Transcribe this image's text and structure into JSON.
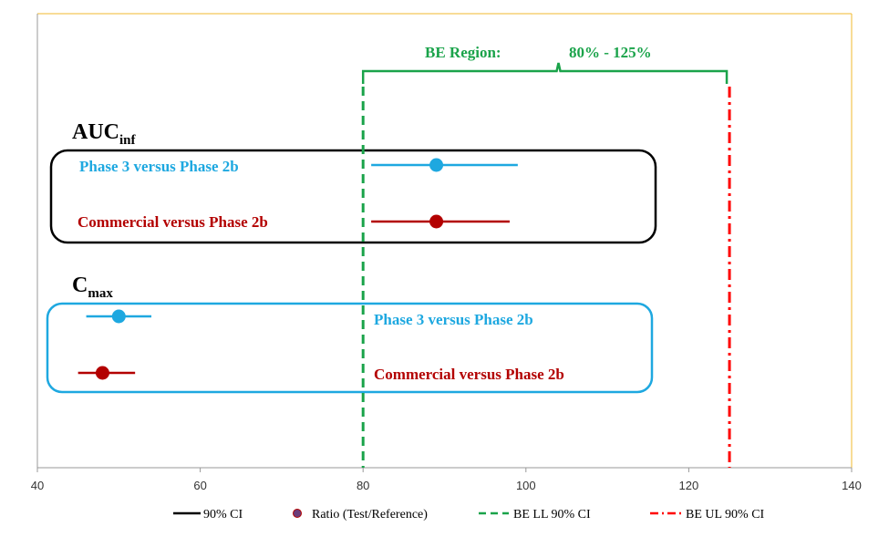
{
  "chart_data": {
    "type": "scatter",
    "x_axis": {
      "min": 40,
      "max": 140,
      "ticks": [
        "40",
        "60",
        "80",
        "100",
        "120",
        "140"
      ]
    },
    "be_region": {
      "label": "BE Region:",
      "range_label": "80% - 125%",
      "lower": 80,
      "upper": 125,
      "brace_mid": 104
    },
    "groups": [
      {
        "title_main": "AUC",
        "title_sub": "inf",
        "rows": [
          {
            "label": "Phase 3 versus Phase 2b",
            "color": "#1ea8e0",
            "ratio": 89,
            "ci_low": 81,
            "ci_high": 99
          },
          {
            "label": "Commercial versus Phase 2b",
            "color": "#b30000",
            "ratio": 89,
            "ci_low": 81,
            "ci_high": 98
          }
        ]
      },
      {
        "title_main": "C",
        "title_sub": "max",
        "rows": [
          {
            "label": "Phase 3 versus Phase 2b",
            "color": "#1ea8e0",
            "ratio": 50,
            "ci_low": 46,
            "ci_high": 54
          },
          {
            "label": "Commercial versus Phase 2b",
            "color": "#b30000",
            "ratio": 48,
            "ci_low": 45,
            "ci_high": 52
          }
        ]
      }
    ],
    "legend": [
      {
        "label": "90% CI",
        "kind": "solid",
        "color": "#000000"
      },
      {
        "label": "Ratio (Test/Reference)",
        "kind": "marker",
        "color": "#6a3d7a"
      },
      {
        "label": "BE LL 90% CI",
        "kind": "dash",
        "color": "#1aa34a"
      },
      {
        "label": "BE UL 90% CI",
        "kind": "dashdot",
        "color": "#ff0000"
      }
    ],
    "legend_position": "bottom",
    "grid": false,
    "colors": {
      "be_green": "#1aa34a",
      "be_red": "#ff0000",
      "frame": "#f2b92c",
      "group1_box": "#000000",
      "group2_box": "#1ea8e0"
    }
  }
}
